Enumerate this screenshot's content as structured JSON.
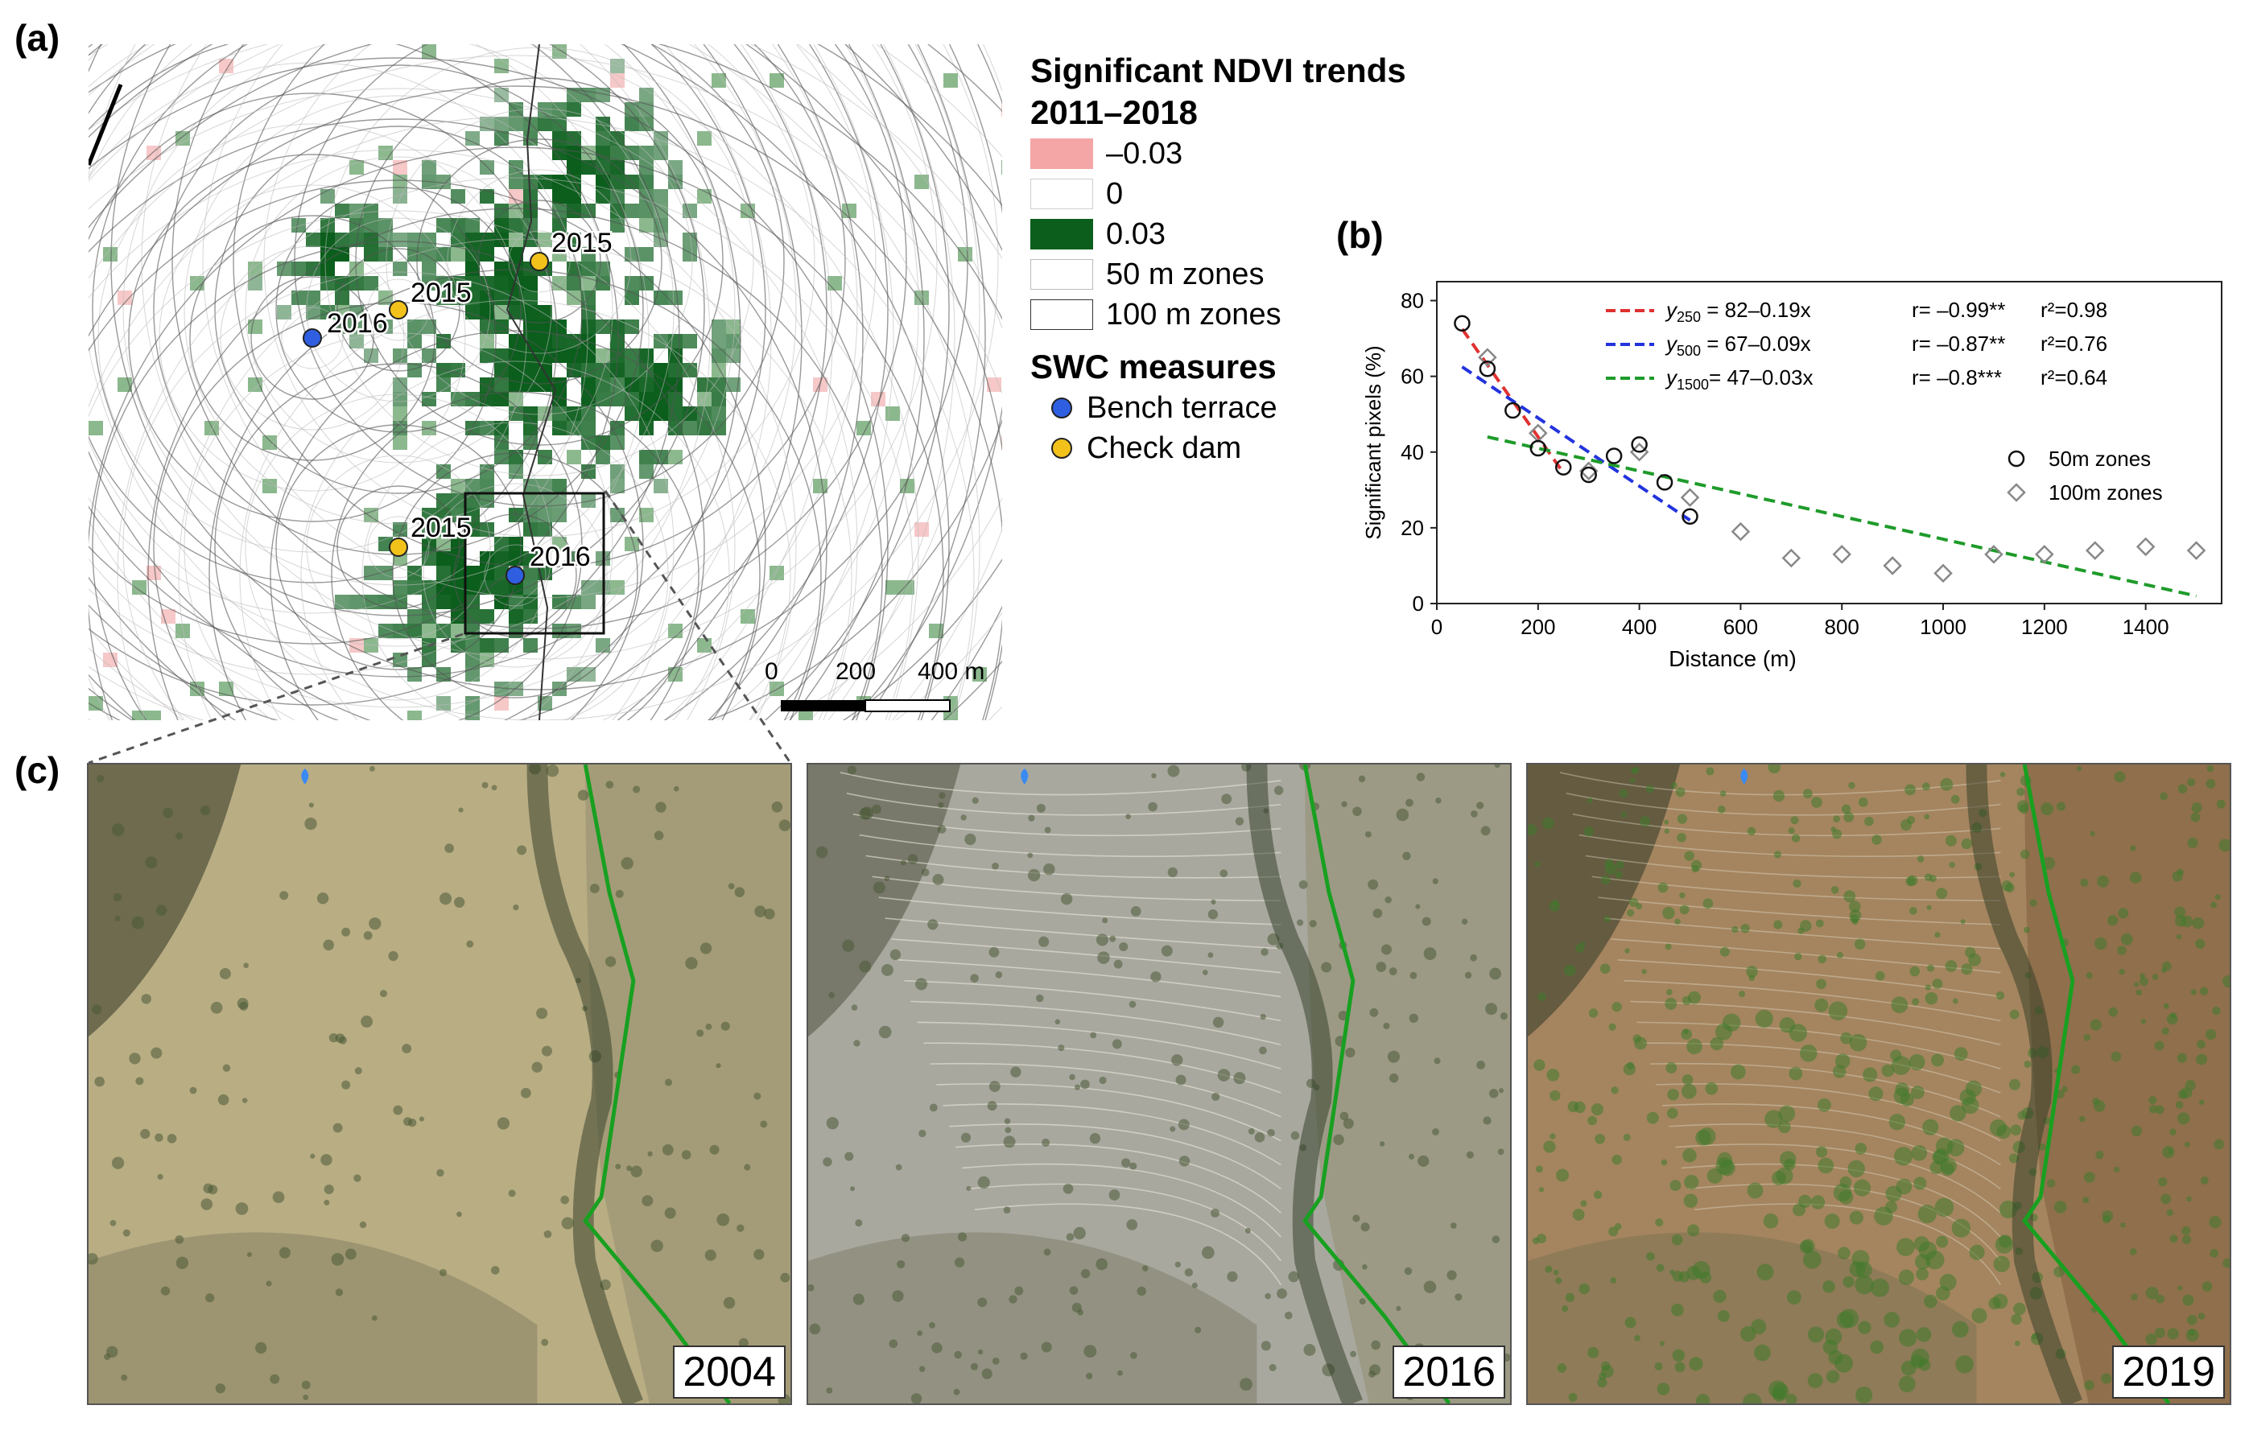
{
  "panels": {
    "a": "(a)",
    "b": "(b)",
    "c": "(c)"
  },
  "legend": {
    "title_line1": "Significant NDVI trends",
    "title_line2": "2011–2018",
    "items": [
      {
        "label": "–0.03",
        "color": "#f4a6a6"
      },
      {
        "label": "0",
        "color": "#ffffff"
      },
      {
        "label": "0.03",
        "color": "#0b5e1c"
      },
      {
        "label": "50 m zones",
        "color": "#ffffff"
      },
      {
        "label": "100 m zones",
        "color": "#ffffff"
      }
    ],
    "swc_title": "SWC measures",
    "swc_items": [
      {
        "label": "Bench terrace",
        "color": "#2f5fe0",
        "icon": "blue-dot"
      },
      {
        "label": "Check dam",
        "color": "#f2c21b",
        "icon": "yellow-dot"
      }
    ]
  },
  "map_points": [
    {
      "label": "2016",
      "type": "bench terrace"
    },
    {
      "label": "2015",
      "type": "check dam"
    },
    {
      "label": "2015",
      "type": "check dam"
    },
    {
      "label": "2015",
      "type": "check dam"
    },
    {
      "label": "2016",
      "type": "bench terrace"
    }
  ],
  "scalebar": {
    "ticks": [
      "0",
      "200",
      "400 m"
    ]
  },
  "chart_data": {
    "type": "scatter",
    "xlabel": "Distance (m)",
    "ylabel": "Significant pixels (%)",
    "xlim": [
      0,
      1550
    ],
    "ylim": [
      0,
      85
    ],
    "xticks": [
      0,
      200,
      400,
      600,
      800,
      1000,
      1200,
      1400
    ],
    "yticks": [
      0,
      20,
      40,
      60,
      80
    ],
    "series": [
      {
        "name": "50m zones",
        "marker": "circle",
        "x": [
          50,
          100,
          150,
          200,
          250,
          300,
          350,
          400,
          450,
          500
        ],
        "y": [
          74,
          62,
          51,
          41,
          36,
          34,
          39,
          42,
          32,
          23
        ]
      },
      {
        "name": "100m zones",
        "marker": "diamond",
        "x": [
          100,
          200,
          300,
          400,
          500,
          600,
          700,
          800,
          900,
          1000,
          1100,
          1200,
          1300,
          1400,
          1500
        ],
        "y": [
          65,
          45,
          35,
          40,
          28,
          19,
          12,
          13,
          10,
          8,
          13,
          13,
          14,
          15,
          14
        ]
      }
    ],
    "fits": [
      {
        "sub": "250",
        "eq": " = 82–0.19x",
        "r": "r= –0.99**",
        "r2": "r²=0.98",
        "color": "#e03030",
        "x": [
          50,
          250
        ],
        "y": [
          72.5,
          34.5
        ]
      },
      {
        "sub": "500",
        "eq": " = 67–0.09x",
        "r": "r= –0.87**",
        "r2": "r²=0.76",
        "color": "#2233dd",
        "x": [
          50,
          500
        ],
        "y": [
          62.5,
          22
        ]
      },
      {
        "sub": "1500",
        "eq": "= 47–0.03x",
        "r": "r= –0.8***",
        "r2": "r²=0.64",
        "color": "#1e9b2a",
        "x": [
          100,
          1500
        ],
        "y": [
          44,
          2
        ]
      }
    ],
    "legend_placement": "top-right"
  },
  "photos": [
    {
      "year": "2004",
      "tone": "#b9ad84"
    },
    {
      "year": "2016",
      "tone": "#a9a89f"
    },
    {
      "year": "2019",
      "tone": "#a4855f"
    }
  ]
}
